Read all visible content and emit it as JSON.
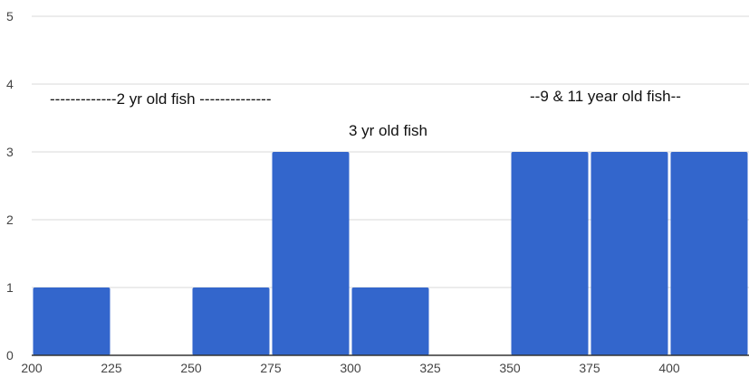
{
  "chart_data": {
    "type": "bar",
    "title": "",
    "xlabel": "",
    "ylabel": "",
    "x_ticks": [
      "200",
      "225",
      "250",
      "275",
      "300",
      "325",
      "350",
      "375",
      "400"
    ],
    "y_ticks": [
      "0",
      "1",
      "2",
      "3",
      "4",
      "5"
    ],
    "xlim": [
      200,
      425
    ],
    "ylim": [
      0,
      5
    ],
    "bin_width": 25,
    "bins": [
      {
        "start": 200,
        "end": 225,
        "value": 1
      },
      {
        "start": 225,
        "end": 250,
        "value": 0
      },
      {
        "start": 250,
        "end": 275,
        "value": 1
      },
      {
        "start": 275,
        "end": 300,
        "value": 3
      },
      {
        "start": 300,
        "end": 325,
        "value": 1
      },
      {
        "start": 325,
        "end": 350,
        "value": 0
      },
      {
        "start": 350,
        "end": 375,
        "value": 3
      },
      {
        "start": 375,
        "end": 400,
        "value": 3
      },
      {
        "start": 400,
        "end": 425,
        "value": 3
      }
    ],
    "annotations": [
      {
        "text": "-------------2 yr old fish --------------"
      },
      {
        "text": "3 yr old fish"
      },
      {
        "text": "--9 & 11 year old fish--"
      }
    ],
    "grid": true,
    "colors": {
      "bar": "#3366cc",
      "grid": "#d9d9d9",
      "axis": "#333333"
    }
  }
}
